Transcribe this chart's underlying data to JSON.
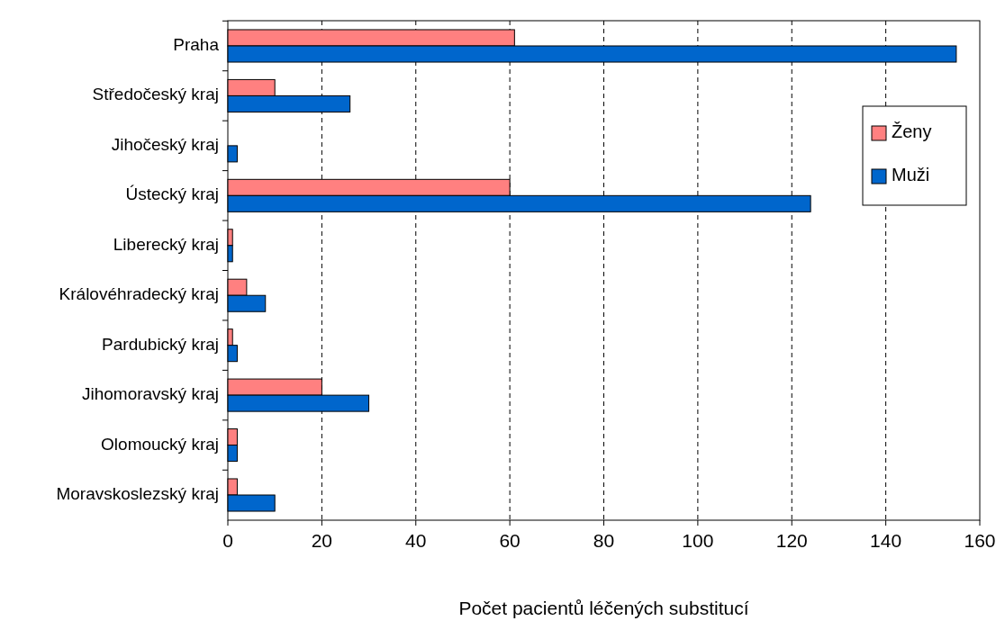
{
  "chart_data": {
    "type": "bar",
    "orientation": "horizontal",
    "xlabel": "Počet pacientů léčených substitucí",
    "categories": [
      "Praha",
      "Středočeský kraj",
      "Jihočeský kraj",
      "Ústecký kraj",
      "Liberecký kraj",
      "Královéhradecký kraj",
      "Pardubický kraj",
      "Jihomoravský kraj",
      "Olomoucký kraj",
      "Moravskoslezský kraj"
    ],
    "series": [
      {
        "name": "Ženy",
        "color": "#ff8080",
        "values": [
          61,
          10,
          0,
          60,
          1,
          4,
          1,
          20,
          2,
          2
        ]
      },
      {
        "name": "Muži",
        "color": "#0066cc",
        "values": [
          155,
          26,
          2,
          124,
          1,
          8,
          2,
          30,
          2,
          10
        ]
      }
    ],
    "xlim": [
      0,
      160
    ],
    "xticks": [
      0,
      20,
      40,
      60,
      80,
      100,
      120,
      140,
      160
    ],
    "grid": "x",
    "legend": "top right"
  }
}
